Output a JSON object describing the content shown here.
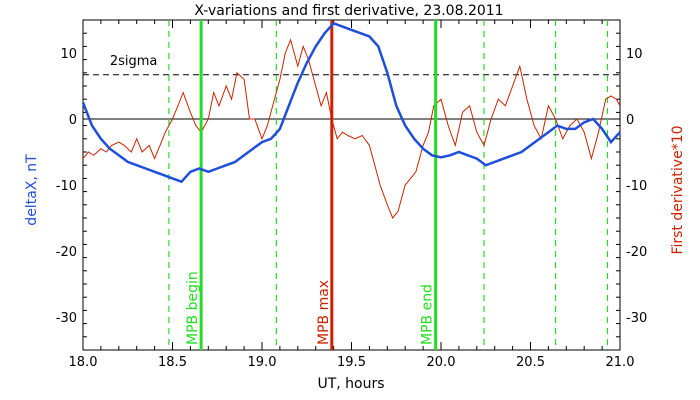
{
  "chart_data": {
    "type": "line",
    "title": "X-variations and first derivative, 23.08.2011",
    "xlabel": "UT, hours",
    "ylabel_left": "deltaX, nT",
    "ylabel_right": "First derivative*10",
    "xlim": [
      18.0,
      21.0
    ],
    "ylim": [
      -35,
      15
    ],
    "xticks": [
      18.0,
      18.5,
      19.0,
      19.5,
      20.0,
      20.5,
      21.0
    ],
    "xtick_labels": [
      "18.0",
      "18.5",
      "19.0",
      "19.5",
      "20.0",
      "20.5",
      "21.0"
    ],
    "yticks": [
      -30,
      -20,
      -10,
      0,
      10
    ],
    "ytick_labels": [
      "-30",
      "-20",
      "-10",
      "0",
      "10"
    ],
    "sigma_label": "2sigma",
    "sigma_level": 6.7,
    "zero_level": 0,
    "colors": {
      "deltaX": "#1f4fd8",
      "derivative": "#cc2200",
      "mpb_lines": "#22dd22",
      "mpb_max": "#cc2200",
      "reference": "#000000"
    },
    "dashed_vlines": [
      18.48,
      19.08,
      20.24,
      20.64,
      20.93
    ],
    "mpb_markers": [
      {
        "label": "MPB begin",
        "x": 18.66,
        "color": "#22dd22"
      },
      {
        "label": "MPB max",
        "x": 19.39,
        "color": "#cc2200"
      },
      {
        "label": "MPB end",
        "x": 19.97,
        "color": "#22dd22"
      }
    ],
    "series": [
      {
        "name": "deltaX",
        "x": [
          18.0,
          18.05,
          18.1,
          18.15,
          18.2,
          18.25,
          18.3,
          18.35,
          18.4,
          18.45,
          18.5,
          18.55,
          18.6,
          18.65,
          18.7,
          18.75,
          18.8,
          18.85,
          18.9,
          18.95,
          19.0,
          19.05,
          19.1,
          19.15,
          19.2,
          19.25,
          19.3,
          19.35,
          19.4,
          19.45,
          19.5,
          19.55,
          19.6,
          19.65,
          19.7,
          19.75,
          19.8,
          19.85,
          19.9,
          19.95,
          20.0,
          20.05,
          20.1,
          20.15,
          20.2,
          20.25,
          20.3,
          20.35,
          20.4,
          20.45,
          20.5,
          20.55,
          20.6,
          20.65,
          20.7,
          20.75,
          20.8,
          20.85,
          20.9,
          20.95,
          21.0
        ],
        "y": [
          2.5,
          -1.0,
          -3.0,
          -4.5,
          -5.5,
          -6.5,
          -7.0,
          -7.5,
          -8.0,
          -8.5,
          -9.0,
          -9.5,
          -8.0,
          -7.5,
          -8.0,
          -7.5,
          -7.0,
          -6.5,
          -5.5,
          -4.5,
          -3.5,
          -3.0,
          -1.5,
          2.0,
          5.5,
          8.5,
          11.0,
          13.0,
          14.5,
          14.0,
          13.5,
          13.0,
          12.5,
          11.0,
          7.0,
          2.0,
          -1.0,
          -3.0,
          -4.5,
          -5.5,
          -5.8,
          -5.5,
          -5.0,
          -5.5,
          -6.0,
          -7.0,
          -6.5,
          -6.0,
          -5.5,
          -5.0,
          -4.0,
          -3.0,
          -2.0,
          -1.0,
          -1.5,
          -1.5,
          -0.5,
          0.0,
          -1.5,
          -3.5,
          -2.0
        ]
      },
      {
        "name": "derivative",
        "x": [
          18.0,
          18.03,
          18.06,
          18.1,
          18.13,
          18.16,
          18.2,
          18.23,
          18.27,
          18.3,
          18.33,
          18.37,
          18.4,
          18.43,
          18.46,
          18.5,
          18.53,
          18.56,
          18.6,
          18.63,
          18.66,
          18.7,
          18.73,
          18.76,
          18.8,
          18.83,
          18.86,
          18.9,
          18.93,
          18.96,
          19.0,
          19.03,
          19.06,
          19.1,
          19.13,
          19.16,
          19.2,
          19.23,
          19.26,
          19.3,
          19.33,
          19.36,
          19.39,
          19.42,
          19.45,
          19.48,
          19.52,
          19.56,
          19.6,
          19.63,
          19.66,
          19.7,
          19.73,
          19.76,
          19.8,
          19.83,
          19.86,
          19.9,
          19.93,
          19.96,
          20.0,
          20.04,
          20.08,
          20.12,
          20.16,
          20.2,
          20.24,
          20.28,
          20.32,
          20.36,
          20.4,
          20.44,
          20.48,
          20.52,
          20.56,
          20.6,
          20.64,
          20.68,
          20.72,
          20.76,
          20.8,
          20.84,
          20.88,
          20.92,
          20.95,
          20.98,
          21.0
        ],
        "y": [
          -6.0,
          -5.0,
          -5.5,
          -4.5,
          -5.0,
          -4.0,
          -3.5,
          -4.0,
          -5.0,
          -3.0,
          -5.0,
          -4.0,
          -6.0,
          -4.0,
          -2.0,
          0.0,
          2.0,
          4.0,
          1.0,
          -1.0,
          -2.0,
          0.0,
          4.0,
          2.0,
          5.0,
          3.0,
          7.0,
          6.0,
          0.0,
          0.0,
          -3.0,
          -1.0,
          2.0,
          6.0,
          10.0,
          12.0,
          8.0,
          11.0,
          9.0,
          5.0,
          2.0,
          4.0,
          0.0,
          -3.0,
          -2.0,
          -2.5,
          -3.0,
          -2.5,
          -4.0,
          -7.0,
          -10.0,
          -13.0,
          -15.0,
          -14.0,
          -10.0,
          -9.0,
          -8.0,
          -4.0,
          -2.0,
          2.0,
          3.0,
          -1.0,
          -4.0,
          1.0,
          2.0,
          -2.0,
          -4.0,
          0.0,
          3.0,
          2.0,
          5.0,
          8.0,
          3.0,
          -1.0,
          -3.0,
          2.0,
          0.0,
          -3.0,
          -1.0,
          0.0,
          -2.0,
          -6.0,
          -2.0,
          3.0,
          3.5,
          3.0,
          2.0
        ]
      }
    ]
  }
}
